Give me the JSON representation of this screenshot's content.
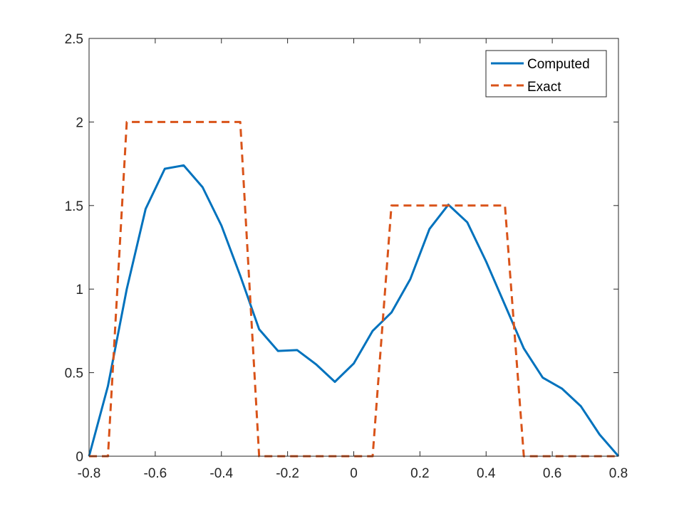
{
  "chart_data": {
    "type": "line",
    "title": "",
    "xlabel": "",
    "ylabel": "",
    "xlim": [
      -0.8,
      0.8
    ],
    "ylim": [
      0,
      2.5
    ],
    "xticks": [
      -0.8,
      -0.6,
      -0.4,
      -0.2,
      0,
      0.2,
      0.4,
      0.6,
      0.8
    ],
    "yticks": [
      0,
      0.5,
      1,
      1.5,
      2,
      2.5
    ],
    "xtick_labels": [
      "-0.8",
      "-0.6",
      "-0.4",
      "-0.2",
      "0",
      "0.2",
      "0.4",
      "0.6",
      "0.8"
    ],
    "ytick_labels": [
      "0",
      "0.5",
      "1",
      "1.5",
      "2",
      "2.5"
    ],
    "grid": false,
    "box": true,
    "legend": {
      "placement": "top-right",
      "entries": [
        "Computed",
        "Exact"
      ]
    },
    "series": [
      {
        "name": "Computed",
        "style": "solid",
        "color": "#0072BD",
        "x": [
          -0.8,
          -0.743,
          -0.686,
          -0.629,
          -0.571,
          -0.514,
          -0.457,
          -0.4,
          -0.343,
          -0.286,
          -0.229,
          -0.171,
          -0.114,
          -0.057,
          0,
          0.057,
          0.114,
          0.171,
          0.229,
          0.286,
          0.343,
          0.4,
          0.457,
          0.514,
          0.571,
          0.629,
          0.686,
          0.743,
          0.8
        ],
        "y": [
          0,
          0.42,
          1.0,
          1.48,
          1.72,
          1.74,
          1.61,
          1.38,
          1.08,
          0.76,
          0.63,
          0.635,
          0.55,
          0.445,
          0.555,
          0.75,
          0.86,
          1.06,
          1.36,
          1.505,
          1.4,
          1.165,
          0.905,
          0.645,
          0.47,
          0.405,
          0.3,
          0.13,
          0
        ]
      },
      {
        "name": "Exact",
        "style": "dashed",
        "color": "#D95319",
        "x": [
          -0.8,
          -0.743,
          -0.686,
          -0.343,
          -0.286,
          0.057,
          0.114,
          0.457,
          0.514,
          0.8
        ],
        "y": [
          0,
          0,
          2,
          2,
          0,
          0,
          1.5,
          1.5,
          0,
          0
        ]
      }
    ]
  }
}
